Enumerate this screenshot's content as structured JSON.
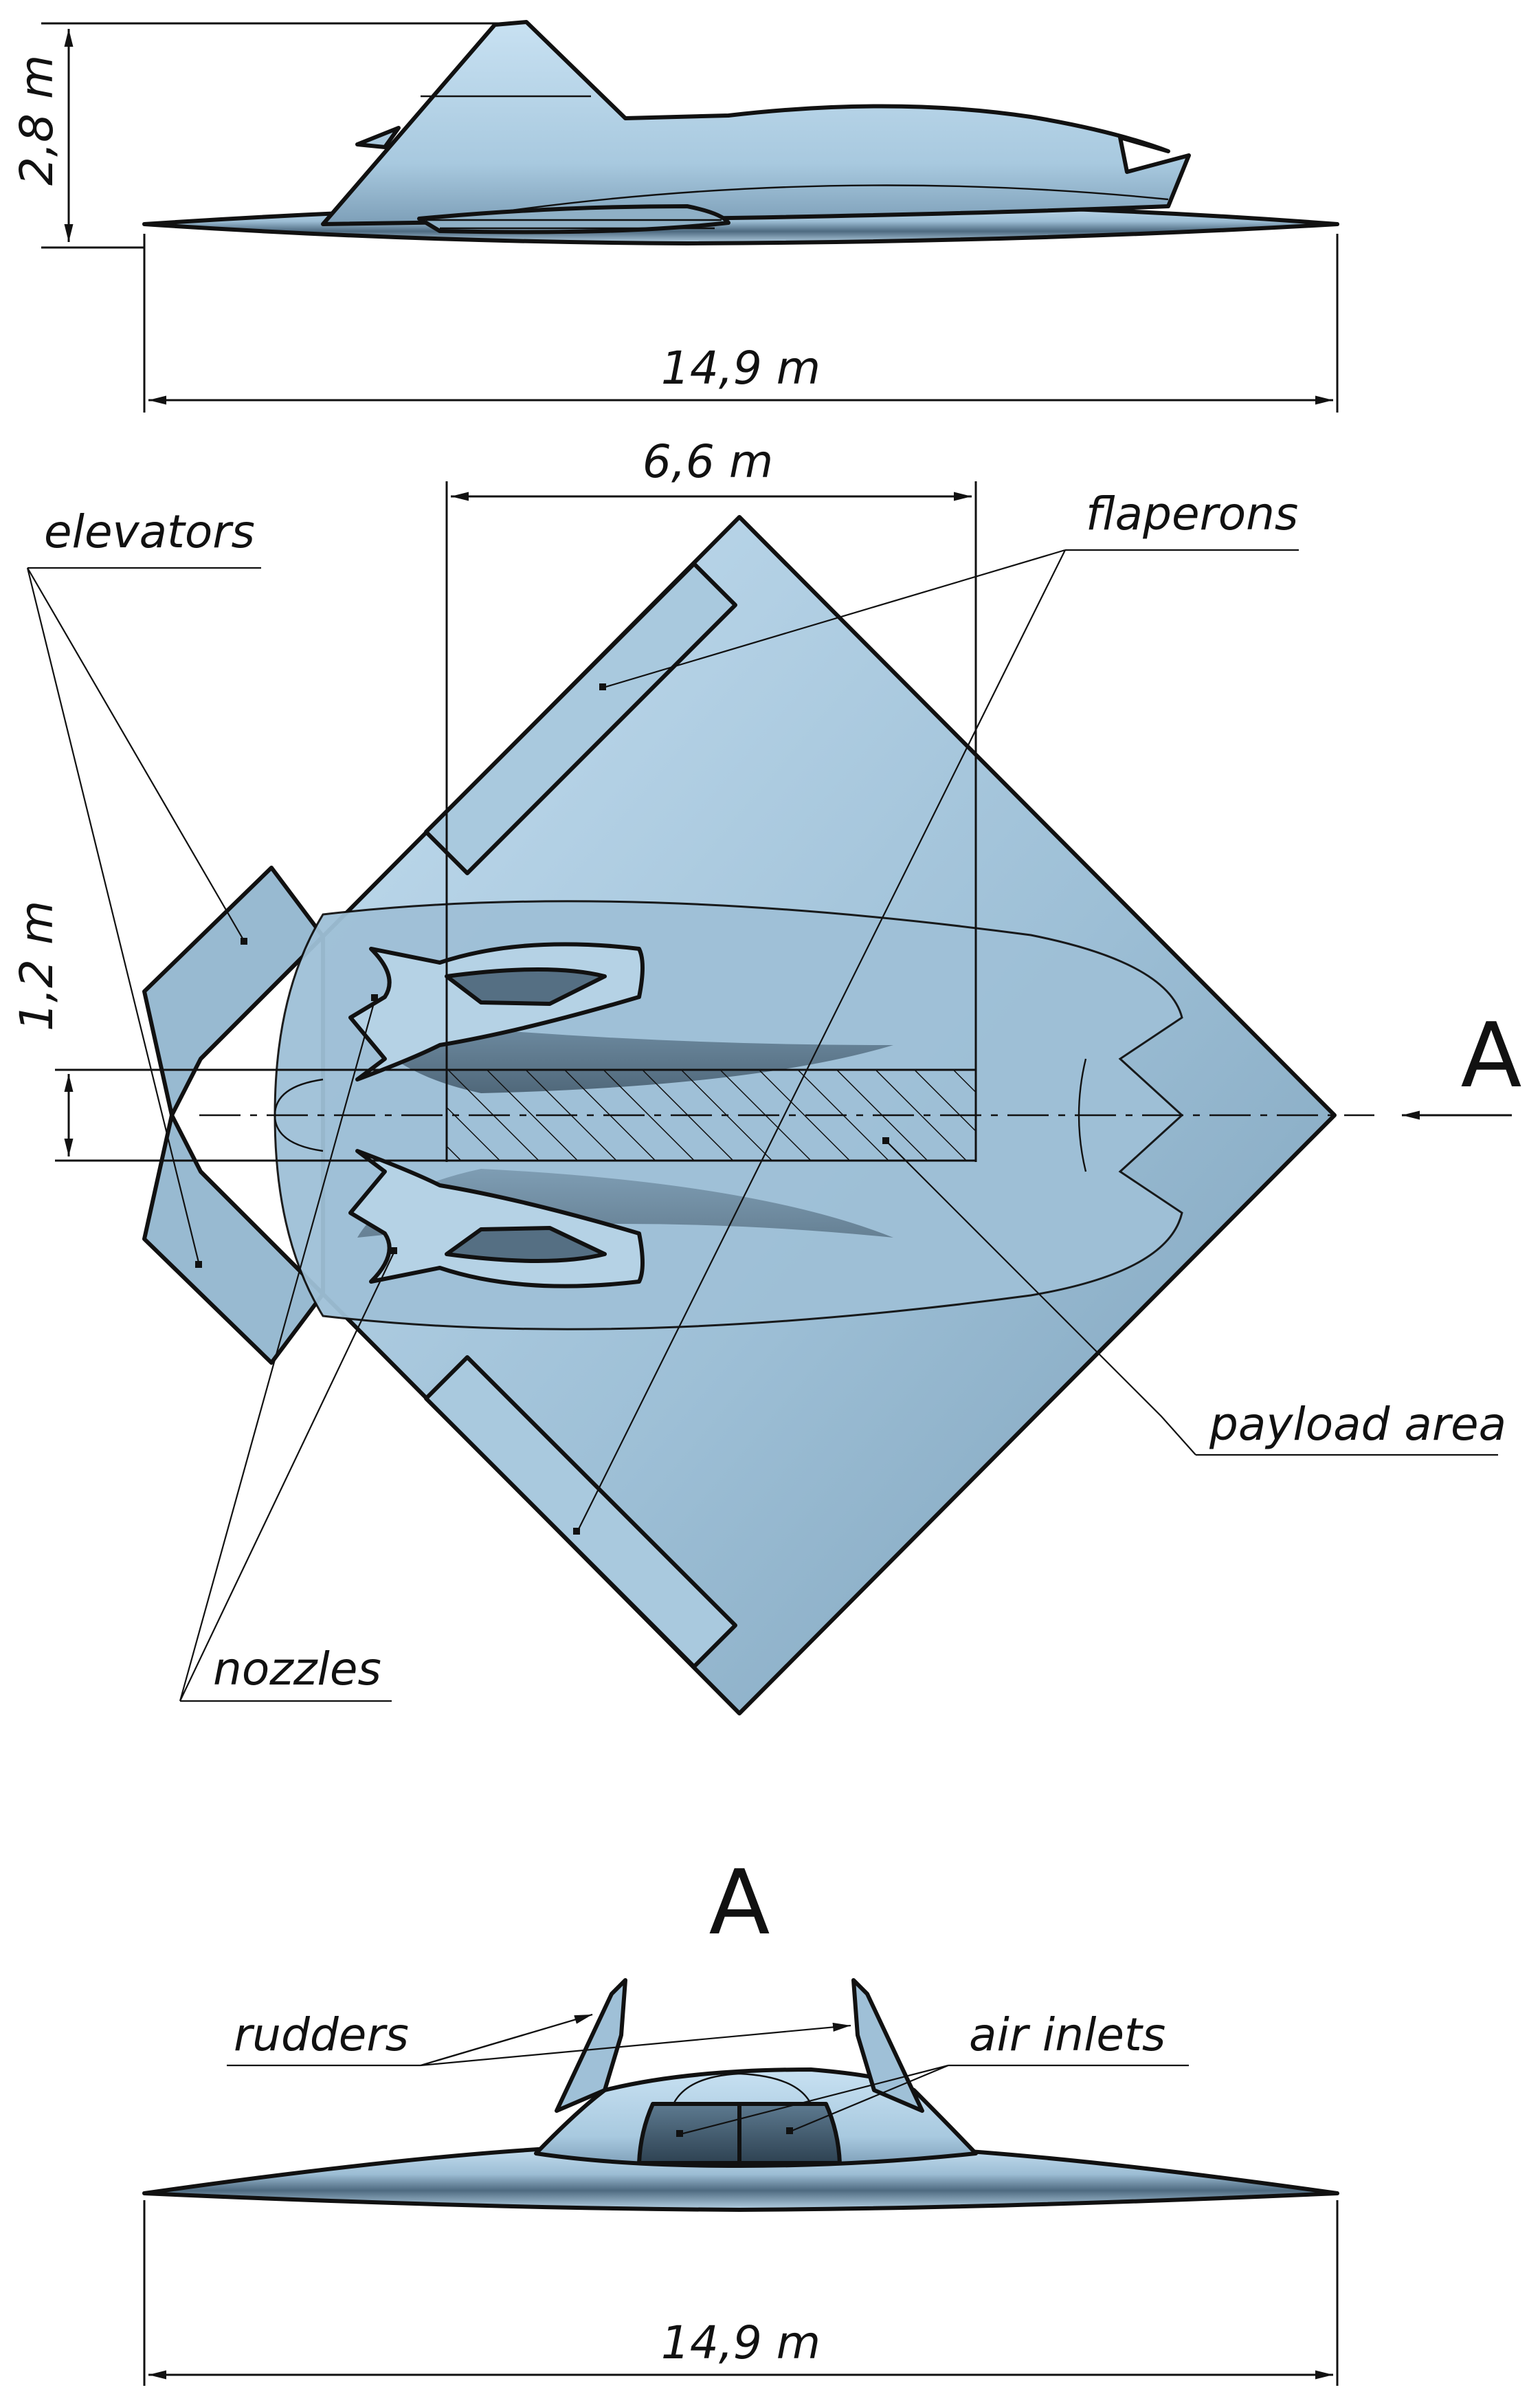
{
  "dimensions": {
    "height": "2,8 m",
    "span_top": "14,9 m",
    "payload_length": "6,6 m",
    "payload_width": "1,2 m",
    "span_front": "14,9 m"
  },
  "labels": {
    "elevators": "elevators",
    "flaperons": "flaperons",
    "payload_area": "payload area",
    "nozzles": "nozzles",
    "rudders": "rudders",
    "air_inlets": "air inlets"
  },
  "view_marker": "A",
  "view_title": "A",
  "colors": {
    "body_light": "#bcd8ea",
    "body_mid": "#8fb3cb",
    "body_dark": "#34495a",
    "line": "#111111"
  }
}
